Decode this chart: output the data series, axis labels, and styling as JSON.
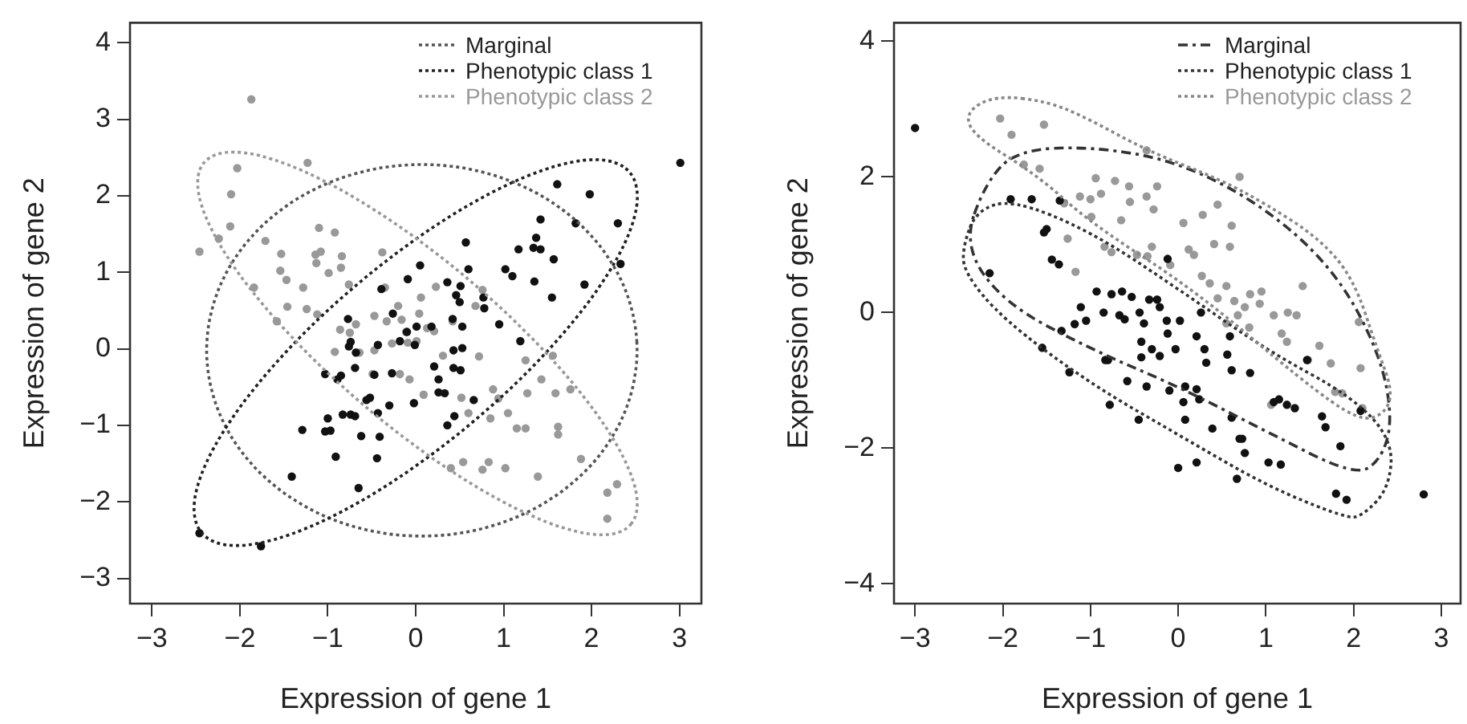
{
  "chart_data": [
    {
      "type": "scatter",
      "xlabel": "Expression of gene 1",
      "ylabel": "Expression of gene 2",
      "xlim": [
        -3.25,
        3.25
      ],
      "ylim": [
        -3.33,
        4.26
      ],
      "xticks": [
        -3,
        -2,
        -1,
        0,
        1,
        2,
        3
      ],
      "yticks": [
        -3,
        -2,
        -1,
        0,
        1,
        2,
        3,
        4
      ],
      "marker": "circle",
      "annotations": [
        "Marginal",
        "Phenotypic class 1",
        "Phenotypic class 2"
      ],
      "series": [
        {
          "type": "scatter",
          "color": "#111111",
          "x": [
            -2.46,
            -1.76,
            -1.41,
            -1.29,
            -1.03,
            -0.89,
            -0.85,
            -1.0,
            -1.03,
            -0.97,
            -0.91,
            -0.83,
            -0.74,
            -0.69,
            -0.65,
            -0.62,
            -0.77,
            -0.76,
            -0.74,
            -0.68,
            -0.69,
            -0.56,
            3.01,
            1.61,
            1.98,
            1.42,
            1.37,
            1.34,
            1.42,
            1.17,
            1.82,
            2.3,
            2.33,
            1.57,
            1.02,
            1.1,
            1.35,
            1.55,
            1.92,
            0.57,
            0.6,
            0.36,
            0.51,
            0.05,
            -0.09,
            -0.39,
            0.46,
            0.5,
            0.77,
            0.78,
            0.95,
            0.42,
            0.53,
            0.18,
            0.01,
            -0.26,
            -0.1,
            -0.18,
            -0.43,
            -0.01,
            1.19,
            0.53,
            0.43,
            0.21,
            0.43,
            0.51,
            0.26,
            0.33,
            0.26,
            -0.02,
            -0.3,
            -0.27,
            -0.47,
            -0.52,
            -0.43,
            -0.41,
            -0.44,
            0.66,
            0.44,
            0.36
          ],
          "values": [
            -2.41,
            -2.58,
            -1.67,
            -1.06,
            -0.33,
            -0.4,
            -0.35,
            -0.91,
            -1.08,
            -1.07,
            -1.41,
            -0.86,
            -0.86,
            -0.88,
            -1.82,
            -1.14,
            0.39,
            0.03,
            0.09,
            -0.05,
            -0.25,
            -0.67,
            2.43,
            2.15,
            2.02,
            1.69,
            1.45,
            1.32,
            1.3,
            1.3,
            1.64,
            1.64,
            1.11,
            1.17,
            1.04,
            0.95,
            0.88,
            0.67,
            0.84,
            1.39,
            1.04,
            0.87,
            0.82,
            1.09,
            0.91,
            0.78,
            0.7,
            0.61,
            0.67,
            0.53,
            0.32,
            0.39,
            0.29,
            0.29,
            0.29,
            0.46,
            0.22,
            0.1,
            0.05,
            0.05,
            0.1,
            0.01,
            -0.02,
            -0.23,
            -0.25,
            -0.28,
            -0.4,
            -0.58,
            -0.57,
            -0.71,
            -0.74,
            -0.32,
            -0.34,
            -0.64,
            -0.84,
            -1.15,
            -1.43,
            -0.67,
            -0.88,
            -1.0
          ]
        },
        {
          "type": "scatter",
          "color": "#999999",
          "x": [
            -1.87,
            -2.03,
            -2.1,
            -1.23,
            -2.46,
            -2.11,
            -2.24,
            -1.84,
            -1.71,
            -1.53,
            -1.54,
            -1.47,
            -1.28,
            -1.46,
            -1.24,
            -1.58,
            -1.1,
            -0.92,
            -1.14,
            -1.08,
            -1.13,
            -0.99,
            -0.84,
            -0.85,
            -0.76,
            -1.12,
            -0.86,
            -0.92,
            -0.75,
            -0.68,
            -0.64,
            -0.38,
            -0.35,
            -0.2,
            -0.47,
            -0.33,
            -0.16,
            -0.11,
            0.06,
            0.04,
            0.23,
            0.21,
            -0.09,
            -0.47,
            0.01,
            -0.27,
            -0.49,
            -0.18,
            -0.07,
            0.09,
            0.31,
            0.52,
            0.6,
            0.68,
            0.76,
            0.72,
            0.88,
            0.94,
            1.05,
            0.85,
            1.15,
            1.25,
            1.25,
            1.27,
            1.43,
            1.59,
            1.56,
            1.76,
            1.62,
            1.62,
            1.88,
            1.39,
            1.02,
            0.83,
            0.76,
            0.54,
            0.4,
            2.18,
            2.29,
            2.18,
            0.42,
            0.13
          ],
          "values": [
            3.26,
            2.36,
            2.02,
            2.43,
            1.27,
            1.6,
            1.44,
            0.8,
            1.41,
            1.24,
            1.02,
            0.9,
            0.8,
            0.55,
            0.52,
            0.36,
            1.58,
            1.52,
            1.23,
            1.27,
            1.12,
            0.99,
            1.21,
            1.06,
            0.84,
            0.45,
            0.25,
            -0.04,
            0.21,
            0.32,
            -0.05,
            1.26,
            0.8,
            0.56,
            0.43,
            0.36,
            0.38,
            0.22,
            0.67,
            0.46,
            0.81,
            0.23,
            0.08,
            -0.02,
            0.1,
            0.07,
            -0.33,
            -0.33,
            -0.4,
            -0.6,
            -0.09,
            -0.64,
            -0.84,
            0.56,
            0.77,
            -0.1,
            -0.53,
            -0.65,
            -0.84,
            -0.91,
            -1.04,
            -1.04,
            -0.15,
            -0.58,
            -0.4,
            -0.58,
            -0.09,
            -0.53,
            -1.02,
            -1.12,
            -1.44,
            -1.67,
            -1.56,
            -1.48,
            -1.58,
            -1.48,
            -1.56,
            -1.88,
            -1.77,
            -2.22,
            0.36,
            0.27
          ]
        }
      ]
    },
    {
      "type": "scatter",
      "xlabel": "Expression of gene 1",
      "ylabel": "Expression of gene 2",
      "xlim": [
        -3.24,
        3.22
      ],
      "ylim": [
        -4.29,
        4.27
      ],
      "xticks": [
        -3,
        -2,
        -1,
        0,
        1,
        2,
        3
      ],
      "yticks": [
        -4,
        -2,
        0,
        2,
        4
      ],
      "marker": "circle",
      "annotations": [
        "Marginal",
        "Phenotypic class 1",
        "Phenotypic class 2"
      ],
      "series": [
        {
          "type": "scatter",
          "color": "#111111",
          "x": [
            -3.0,
            -2.15,
            -1.91,
            -1.67,
            -1.35,
            -1.53,
            -1.5,
            -1.44,
            -1.36,
            -1.33,
            -1.55,
            -1.24,
            -1.18,
            -1.11,
            -1.05,
            -0.93,
            -0.85,
            -0.83,
            -0.12,
            -0.76,
            -0.64,
            -0.53,
            -0.33,
            -0.24,
            -0.67,
            -0.44,
            -0.21,
            0.02,
            0.26,
            -0.61,
            -0.39,
            -0.13,
            -0.12,
            0.21,
            0.59,
            -0.42,
            -0.3,
            -0.21,
            -0.8,
            -0.42,
            -0.03,
            0.3,
            0.32,
            0.61,
            0.82,
            -0.58,
            -0.36,
            -0.1,
            0.08,
            0.21,
            0.06,
            0.24,
            0.08,
            0.61,
            0.39,
            0.7,
            0.73,
            0.76,
            1.09,
            1.15,
            1.24,
            1.33,
            1.03,
            1.17,
            0.67,
            0.21,
            0.0,
            -0.45,
            -0.78,
            1.64,
            1.68,
            1.47,
            1.85,
            1.8,
            1.92,
            2.08,
            2.8,
            0.56
          ],
          "values": [
            2.72,
            0.58,
            1.67,
            1.67,
            1.65,
            1.18,
            1.23,
            0.78,
            0.71,
            -0.27,
            -0.52,
            -0.88,
            -0.17,
            0.08,
            -0.12,
            0.31,
            0.0,
            -0.7,
            0.79,
            0.27,
            0.31,
            0.23,
            0.19,
            0.19,
            -0.04,
            0.0,
            0.08,
            -0.12,
            0.0,
            -0.1,
            -0.16,
            -0.12,
            -0.31,
            -0.35,
            -0.35,
            -0.43,
            -0.54,
            -0.64,
            -0.7,
            -0.66,
            -0.54,
            -0.54,
            -0.74,
            -0.85,
            -0.89,
            -1.01,
            -1.09,
            -1.15,
            -1.09,
            -1.13,
            -1.32,
            -1.28,
            -1.58,
            -1.55,
            -1.71,
            -1.86,
            -1.86,
            -2.07,
            -1.32,
            -1.28,
            -1.36,
            -1.41,
            -2.21,
            -2.24,
            -2.45,
            -2.21,
            -2.29,
            -1.58,
            -1.36,
            -1.53,
            -1.69,
            -0.7,
            -1.97,
            -2.67,
            -2.76,
            -1.45,
            -2.68,
            -0.62
          ]
        },
        {
          "type": "scatter",
          "color": "#999999",
          "x": [
            -2.03,
            -1.9,
            -1.53,
            -1.76,
            -1.58,
            -1.3,
            -1.12,
            -1.0,
            -0.94,
            -0.88,
            -1.26,
            -1.17,
            -0.99,
            -0.84,
            -0.36,
            0.7,
            -0.72,
            -0.56,
            -0.24,
            -0.55,
            -0.28,
            -0.65,
            -0.36,
            0.06,
            0.28,
            0.45,
            0.61,
            0.41,
            0.59,
            -0.47,
            -0.35,
            -0.3,
            0.12,
            0.18,
            -0.09,
            0.27,
            0.36,
            0.55,
            0.45,
            0.64,
            0.68,
            0.76,
            0.55,
            0.81,
            0.93,
            0.95,
            1.09,
            1.25,
            1.35,
            1.42,
            1.18,
            1.24,
            1.61,
            1.48,
            1.74,
            2.08,
            2.06,
            1.79,
            1.87,
            2.1,
            1.06,
            0.82,
            -0.76
          ],
          "values": [
            2.86,
            2.62,
            2.77,
            2.18,
            2.12,
            1.61,
            1.71,
            1.67,
            1.98,
            1.75,
            1.09,
            0.6,
            1.41,
            0.97,
            2.39,
            2.0,
            1.94,
            1.86,
            1.86,
            1.63,
            1.52,
            1.36,
            1.71,
            1.32,
            1.44,
            1.59,
            1.28,
            1.01,
            0.97,
            0.85,
            0.83,
            0.97,
            0.93,
            0.85,
            0.7,
            0.54,
            0.43,
            0.39,
            0.21,
            0.17,
            -0.04,
            0.08,
            -0.16,
            -0.22,
            0.13,
            0.31,
            -0.04,
            0.0,
            -0.04,
            0.39,
            -0.31,
            -0.43,
            -0.49,
            -0.7,
            -0.75,
            -0.82,
            -0.14,
            -1.17,
            -1.19,
            -1.41,
            -1.36,
            0.27,
            0.89
          ]
        }
      ]
    }
  ]
}
